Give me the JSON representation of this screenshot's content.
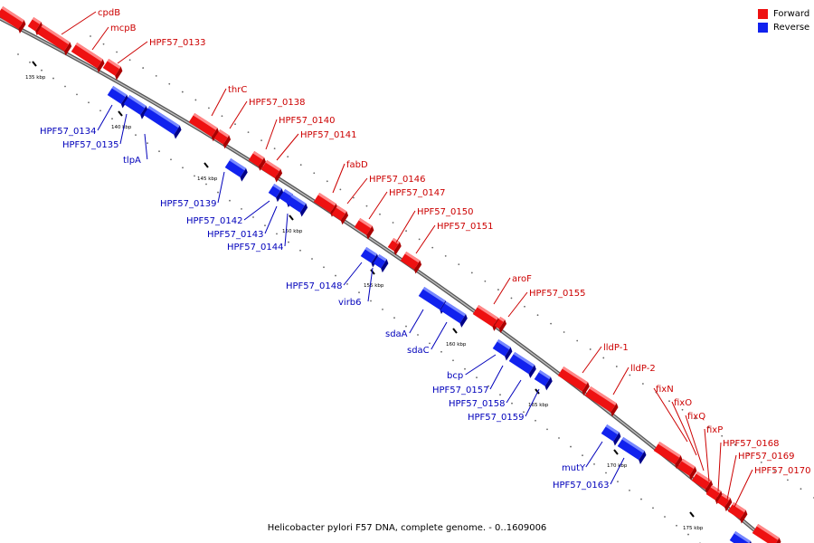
{
  "legend": {
    "forward_label": "Forward",
    "reverse_label": "Reverse",
    "forward_color": "#ee1111",
    "reverse_color": "#1122ee"
  },
  "caption": "Helicobacter pylori F57 DNA, complete genome. - 0..1609006",
  "colors": {
    "forward": "#ee1111",
    "reverse": "#1122ee",
    "backbone": "#888888"
  },
  "ticks": [
    "135 kbp",
    "140 kbp",
    "145 kbp",
    "150 kbp",
    "155 kbp",
    "160 kbp",
    "165 kbp",
    "170 kbp",
    "175 kbp"
  ],
  "genes": {
    "forward": [
      "cpdB",
      "mcpB",
      "HPF57_0133",
      "thrC",
      "HPF57_0138",
      "HPF57_0140",
      "HPF57_0141",
      "fabD",
      "HPF57_0146",
      "HPF57_0147",
      "HPF57_0150",
      "HPF57_0151",
      "aroF",
      "HPF57_0155",
      "lldP-1",
      "lldP-2",
      "fixN",
      "fixO",
      "fixQ",
      "fixP",
      "HPF57_0168",
      "HPF57_0169",
      "HPF57_0170"
    ],
    "reverse": [
      "HPF57_0134",
      "HPF57_0135",
      "tlpA",
      "HPF57_0139",
      "HPF57_0142",
      "HPF57_0143",
      "HPF57_0144",
      "HPF57_0148",
      "virb6",
      "sdaA",
      "sdaC",
      "bcp",
      "HPF57_0157",
      "HPF57_0158",
      "HPF57_0159",
      "mutY",
      "HPF57_0163"
    ]
  }
}
